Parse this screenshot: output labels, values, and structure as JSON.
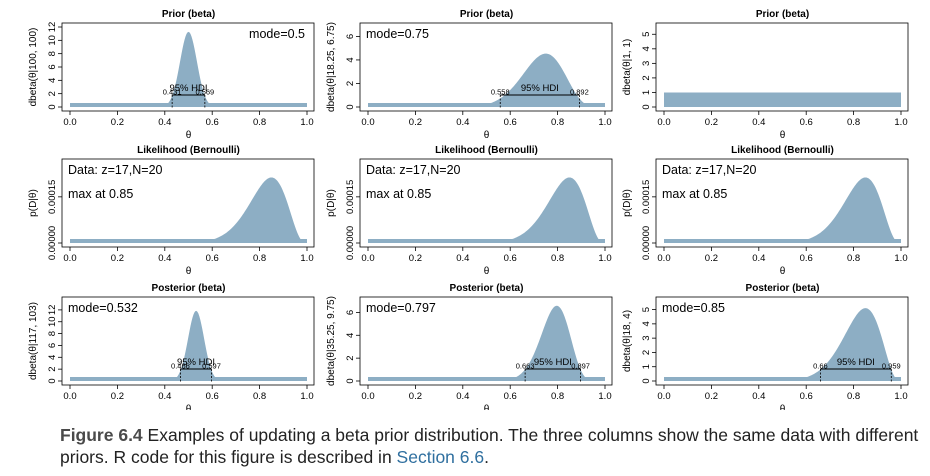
{
  "figure": {
    "fill_color": "#8daec4",
    "hdi_label": "95% HDI",
    "x_label": "θ",
    "x_ticks": [
      "0.0",
      "0.2",
      "0.4",
      "0.6",
      "0.8",
      "1.0"
    ],
    "rows": [
      "prior",
      "likelihood",
      "posterior"
    ]
  },
  "chart_data": [
    {
      "type": "area",
      "row": "prior",
      "col": 1,
      "title": "Prior (beta)",
      "ylabel": "dbeta(θ|100, 100)",
      "dist": {
        "kind": "beta",
        "a": 100,
        "b": 100
      },
      "ylim": [
        0,
        12
      ],
      "yticks": [
        "0",
        "2",
        "4",
        "6",
        "8",
        "10",
        "12"
      ],
      "yvals": [
        0,
        2,
        4,
        6,
        8,
        10,
        12
      ],
      "annotations": [
        "mode=0.5"
      ],
      "annot_side": "right",
      "hdi": {
        "low": 0.431,
        "high": 0.569,
        "low_label": "0.431",
        "high_label": "0.569"
      }
    },
    {
      "type": "area",
      "row": "prior",
      "col": 2,
      "title": "Prior (beta)",
      "ylabel": "dbeta(θ|18.25, 6.75)",
      "dist": {
        "kind": "beta",
        "a": 18.25,
        "b": 6.75
      },
      "ylim": [
        0,
        6.8
      ],
      "yticks": [
        "0",
        "2",
        "4",
        "6"
      ],
      "yvals": [
        0,
        2,
        4,
        6
      ],
      "annotations": [
        "mode=0.75"
      ],
      "annot_side": "left",
      "hdi": {
        "low": 0.558,
        "high": 0.892,
        "low_label": "0.558",
        "high_label": "0.892"
      }
    },
    {
      "type": "area",
      "row": "prior",
      "col": 3,
      "title": "Prior (beta)",
      "ylabel": "dbeta(θ|1, 1)",
      "dist": {
        "kind": "beta",
        "a": 1,
        "b": 1
      },
      "ylim": [
        0,
        5.5
      ],
      "yticks": [
        "0",
        "1",
        "2",
        "3",
        "4",
        "5"
      ],
      "yvals": [
        0,
        1,
        2,
        3,
        4,
        5
      ],
      "annotations": [],
      "annot_side": "left",
      "hdi": null
    },
    {
      "type": "area",
      "row": "likelihood",
      "col": 1,
      "title": "Likelihood (Bernoulli)",
      "ylabel": "p(D|θ)",
      "dist": {
        "kind": "bern",
        "z": 17,
        "N": 20
      },
      "ylim": [
        0,
        0.00026
      ],
      "yticks": [
        "0.00000",
        "0.00015"
      ],
      "yvals": [
        0,
        0.00015
      ],
      "annotations": [
        "Data: z=17,N=20",
        "max at 0.85"
      ],
      "annot_side": "left",
      "hdi": null
    },
    {
      "type": "area",
      "row": "likelihood",
      "col": 2,
      "title": "Likelihood (Bernoulli)",
      "ylabel": "p(D|θ)",
      "dist": {
        "kind": "bern",
        "z": 17,
        "N": 20
      },
      "ylim": [
        0,
        0.00026
      ],
      "yticks": [
        "0.00000",
        "0.00015"
      ],
      "yvals": [
        0,
        0.00015
      ],
      "annotations": [
        "Data: z=17,N=20",
        "max at 0.85"
      ],
      "annot_side": "left",
      "hdi": null
    },
    {
      "type": "area",
      "row": "likelihood",
      "col": 3,
      "title": "Likelihood (Bernoulli)",
      "ylabel": "p(D|θ)",
      "dist": {
        "kind": "bern",
        "z": 17,
        "N": 20
      },
      "ylim": [
        0,
        0.00026
      ],
      "yticks": [
        "0.00000",
        "0.00015"
      ],
      "yvals": [
        0,
        0.00015
      ],
      "annotations": [
        "Data: z=17,N=20",
        "max at 0.85"
      ],
      "annot_side": "left",
      "hdi": null
    },
    {
      "type": "area",
      "row": "posterior",
      "col": 1,
      "title": "Posterior (beta)",
      "ylabel": "dbeta(θ|117, 103)",
      "dist": {
        "kind": "beta",
        "a": 117,
        "b": 103
      },
      "ylim": [
        0,
        13.5
      ],
      "yticks": [
        "0",
        "2",
        "4",
        "6",
        "8",
        "10",
        "12"
      ],
      "yvals": [
        0,
        2,
        4,
        6,
        8,
        10,
        12
      ],
      "annotations": [
        "mode=0.532"
      ],
      "annot_side": "left",
      "hdi": {
        "low": 0.466,
        "high": 0.597,
        "low_label": "0.466",
        "high_label": "0.597"
      }
    },
    {
      "type": "area",
      "row": "posterior",
      "col": 2,
      "title": "Posterior (beta)",
      "ylabel": "dbeta(θ|35.25, 9.75)",
      "dist": {
        "kind": "beta",
        "a": 35.25,
        "b": 9.75
      },
      "ylim": [
        0,
        7.0
      ],
      "yticks": [
        "0",
        "2",
        "4",
        "6"
      ],
      "yvals": [
        0,
        2,
        4,
        6
      ],
      "annotations": [
        "mode=0.797"
      ],
      "annot_side": "left",
      "hdi": {
        "low": 0.663,
        "high": 0.897,
        "low_label": "0.663",
        "high_label": "0.897"
      }
    },
    {
      "type": "area",
      "row": "posterior",
      "col": 3,
      "title": "Posterior (beta)",
      "ylabel": "dbeta(θ|18, 4)",
      "dist": {
        "kind": "beta",
        "a": 18,
        "b": 4
      },
      "ylim": [
        0,
        5.6
      ],
      "yticks": [
        "0",
        "1",
        "2",
        "3",
        "4",
        "5"
      ],
      "yvals": [
        0,
        1,
        2,
        3,
        4,
        5
      ],
      "annotations": [
        "mode=0.85"
      ],
      "annot_side": "left",
      "hdi": {
        "low": 0.66,
        "high": 0.959,
        "low_label": "0.66",
        "high_label": "0.959"
      }
    }
  ],
  "caption": {
    "label": "Figure 6.4",
    "text": " Examples of updating a beta prior distribution. The three columns show the same data with different priors. R code for this figure is described in ",
    "link": "Section 6.6",
    "end": "."
  }
}
